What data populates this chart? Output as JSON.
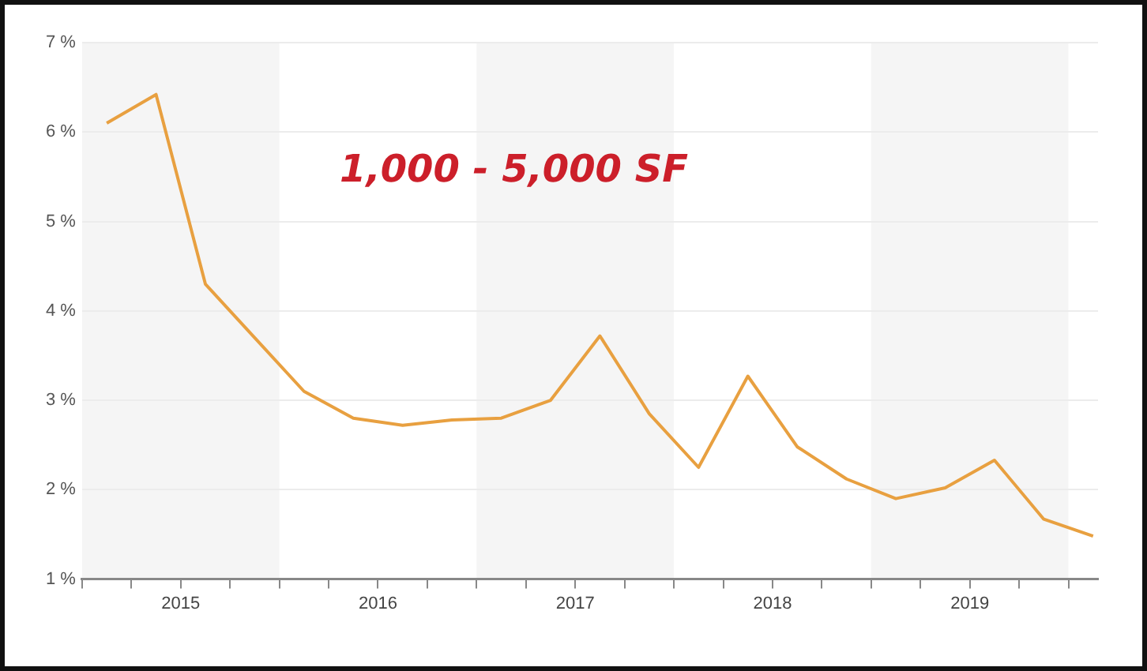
{
  "chart_data": {
    "type": "line",
    "annotations": [
      "1,000 - 5,000 SF"
    ],
    "x": [
      2015.125,
      2015.375,
      2015.625,
      2015.875,
      2016.125,
      2016.375,
      2016.625,
      2016.875,
      2017.125,
      2017.375,
      2017.625,
      2017.875,
      2018.125,
      2018.375,
      2018.625,
      2018.875,
      2019.125,
      2019.375,
      2019.625,
      2019.875,
      2020.125
    ],
    "series": [
      {
        "color": "#e8a040",
        "values": [
          6.1,
          6.42,
          4.3,
          3.7,
          3.1,
          2.8,
          2.72,
          2.78,
          2.8,
          3.0,
          3.72,
          2.85,
          2.25,
          3.27,
          2.48,
          2.12,
          1.9,
          2.02,
          2.33,
          1.67,
          1.48
        ]
      }
    ],
    "xlim": [
      2015,
      2020.15
    ],
    "xticks": [
      {
        "value": 2015,
        "label": null
      },
      {
        "value": 2015.25,
        "label": null
      },
      {
        "value": 2015.5,
        "label": "2015"
      },
      {
        "value": 2015.75,
        "label": null
      },
      {
        "value": 2016,
        "label": null
      },
      {
        "value": 2016.25,
        "label": null
      },
      {
        "value": 2016.5,
        "label": "2016"
      },
      {
        "value": 2016.75,
        "label": null
      },
      {
        "value": 2017,
        "label": null
      },
      {
        "value": 2017.25,
        "label": null
      },
      {
        "value": 2017.5,
        "label": "2017"
      },
      {
        "value": 2017.75,
        "label": null
      },
      {
        "value": 2018,
        "label": null
      },
      {
        "value": 2018.25,
        "label": null
      },
      {
        "value": 2018.5,
        "label": "2018"
      },
      {
        "value": 2018.75,
        "label": null
      },
      {
        "value": 2019,
        "label": null
      },
      {
        "value": 2019.25,
        "label": null
      },
      {
        "value": 2019.5,
        "label": "2019"
      },
      {
        "value": 2019.75,
        "label": null
      },
      {
        "value": 2020,
        "label": null
      }
    ],
    "ylim": [
      1,
      7
    ],
    "yticks": [
      {
        "value": 1,
        "label": "1 %"
      },
      {
        "value": 2,
        "label": "2 %"
      },
      {
        "value": 3,
        "label": "3 %"
      },
      {
        "value": 4,
        "label": "4 %"
      },
      {
        "value": 5,
        "label": "5 %"
      },
      {
        "value": 6,
        "label": "6 %"
      },
      {
        "value": 7,
        "label": "7 %"
      }
    ],
    "bands": [
      {
        "axis": "x",
        "from": 2015,
        "to": 2016,
        "color": "#f5f5f5"
      },
      {
        "axis": "x",
        "from": 2017,
        "to": 2018,
        "color": "#f5f5f5"
      },
      {
        "axis": "x",
        "from": 2019,
        "to": 2020,
        "color": "#f5f5f5"
      }
    ],
    "grid": "y",
    "legend": false,
    "marker": "none",
    "line_style": "solid"
  }
}
